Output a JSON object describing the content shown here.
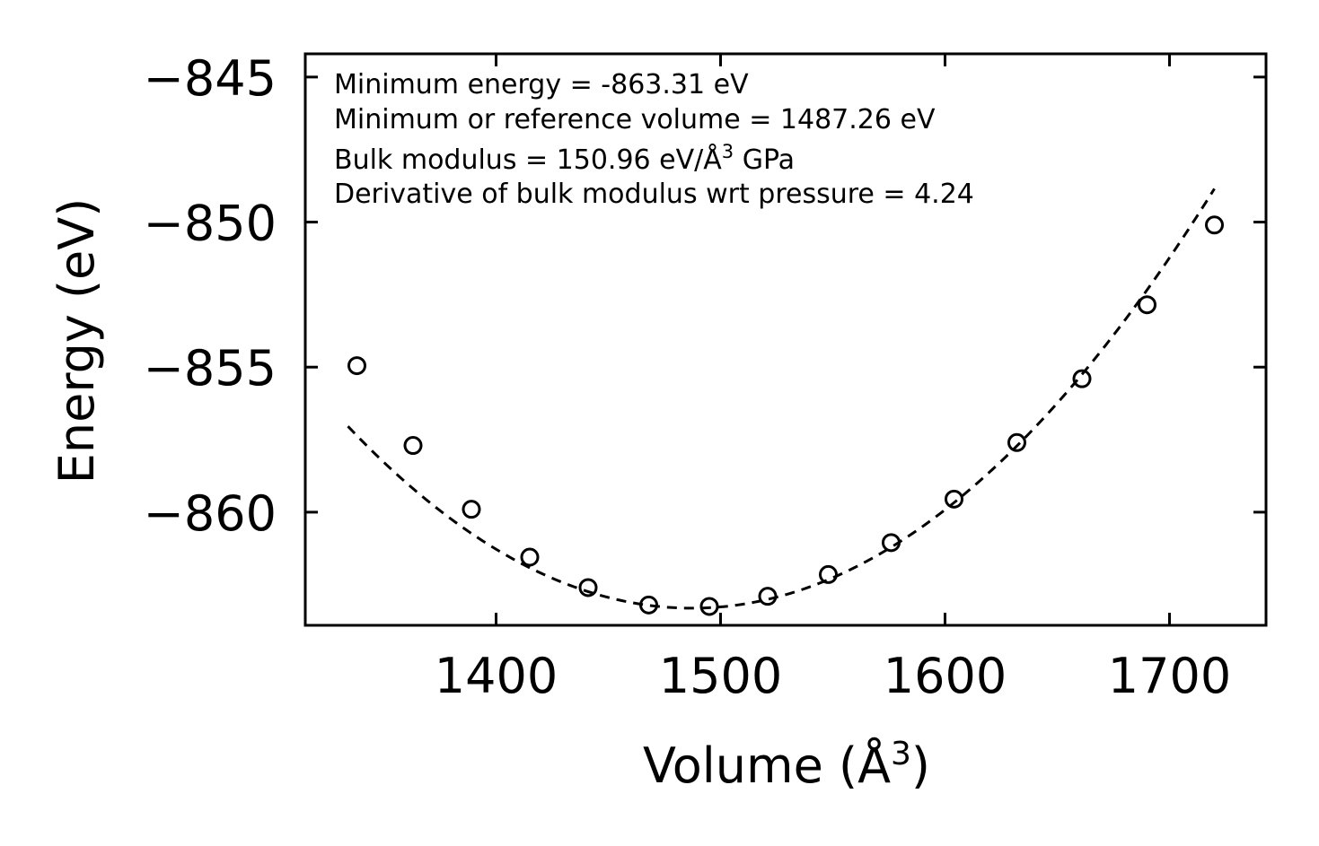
{
  "chart_data": {
    "type": "scatter",
    "title": "",
    "xlabel": "Volume (Å",
    "xlabel_sup": "3",
    "xlabel_end": ")",
    "ylabel": "Energy (eV)",
    "xlim": [
      1315,
      1743
    ],
    "ylim": [
      -863.9,
      -844.2
    ],
    "xticks": [
      1400,
      1500,
      1600,
      1700
    ],
    "yticks": [
      -845,
      -850,
      -855,
      -860
    ],
    "xtick_labels": [
      "1400",
      "1500",
      "1600",
      "1700"
    ],
    "ytick_labels": [
      "−845",
      "−850",
      "−855",
      "−860"
    ],
    "grid": false,
    "series": [
      {
        "name": "data",
        "marker": "open-circle",
        "x": [
          1338,
          1363,
          1389,
          1415,
          1441,
          1468,
          1495,
          1521,
          1548,
          1576,
          1604,
          1632,
          1661,
          1690,
          1720
        ],
        "y": [
          -854.95,
          -857.7,
          -859.9,
          -861.55,
          -862.6,
          -863.2,
          -863.25,
          -862.9,
          -862.15,
          -861.05,
          -859.55,
          -857.6,
          -855.4,
          -852.85,
          -850.1
        ]
      },
      {
        "name": "fit",
        "style": "dashed",
        "E0": -863.31,
        "V0": 1487.26,
        "x_start": 1334,
        "x_end": 1720
      }
    ],
    "annotations": [
      "Minimum energy = -863.31 eV",
      "Minimum or reference volume = 1487.26 eV",
      "Bulk modulus = 150.96 eV/Å",
      "Derivative of bulk modulus wrt pressure = 4.24"
    ],
    "annotation_bulk_sup": "3",
    "annotation_bulk_end": " GPa"
  }
}
